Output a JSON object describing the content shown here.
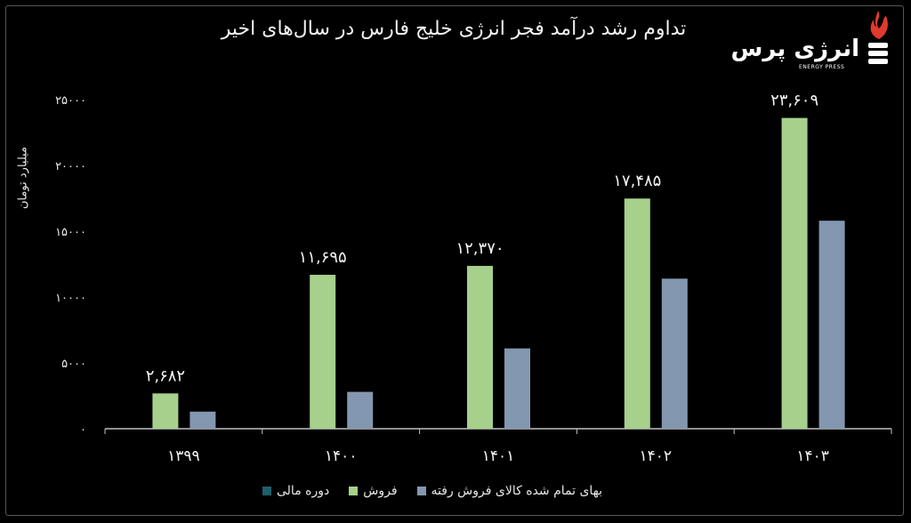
{
  "chart_data": {
    "type": "bar",
    "title": "تداوم رشد درآمد فجر انرژی خلیج فارس در سال‌های اخیر",
    "ylabel": "میلیارد تومان",
    "ylim": [
      0,
      25000
    ],
    "yticks": [
      "۰",
      "۵۰۰۰",
      "۱۰۰۰۰",
      "۱۵۰۰۰",
      "۲۰۰۰۰",
      "۲۵۰۰۰"
    ],
    "ytick_values": [
      0,
      5000,
      10000,
      15000,
      20000,
      25000
    ],
    "categories": [
      "۱۳۹۹",
      "۱۴۰۰",
      "۱۴۰۱",
      "۱۴۰۲",
      "۱۴۰۳"
    ],
    "series": [
      {
        "name": "دوره مالی",
        "values": [
          0,
          0,
          0,
          0,
          0
        ],
        "color": "#1f5f6b"
      },
      {
        "name": "فروش",
        "values": [
          2682,
          11695,
          12370,
          17485,
          23609
        ],
        "color": "#a6d08c",
        "data_labels": [
          "۲,۶۸۲",
          "۱۱,۶۹۵",
          "۱۲,۳۷۰",
          "۱۷,۴۸۵",
          "۲۳,۶۰۹"
        ]
      },
      {
        "name": "بهای تمام شده کالای فروش رفته",
        "values": [
          1300,
          2800,
          6100,
          11400,
          15800
        ],
        "color": "#8497b0"
      }
    ],
    "grid": false,
    "legend_position": "bottom"
  },
  "logo": {
    "text": "انرژی پرس",
    "subtitle": "ENERGY PRESS",
    "icon": "flame-icon"
  }
}
